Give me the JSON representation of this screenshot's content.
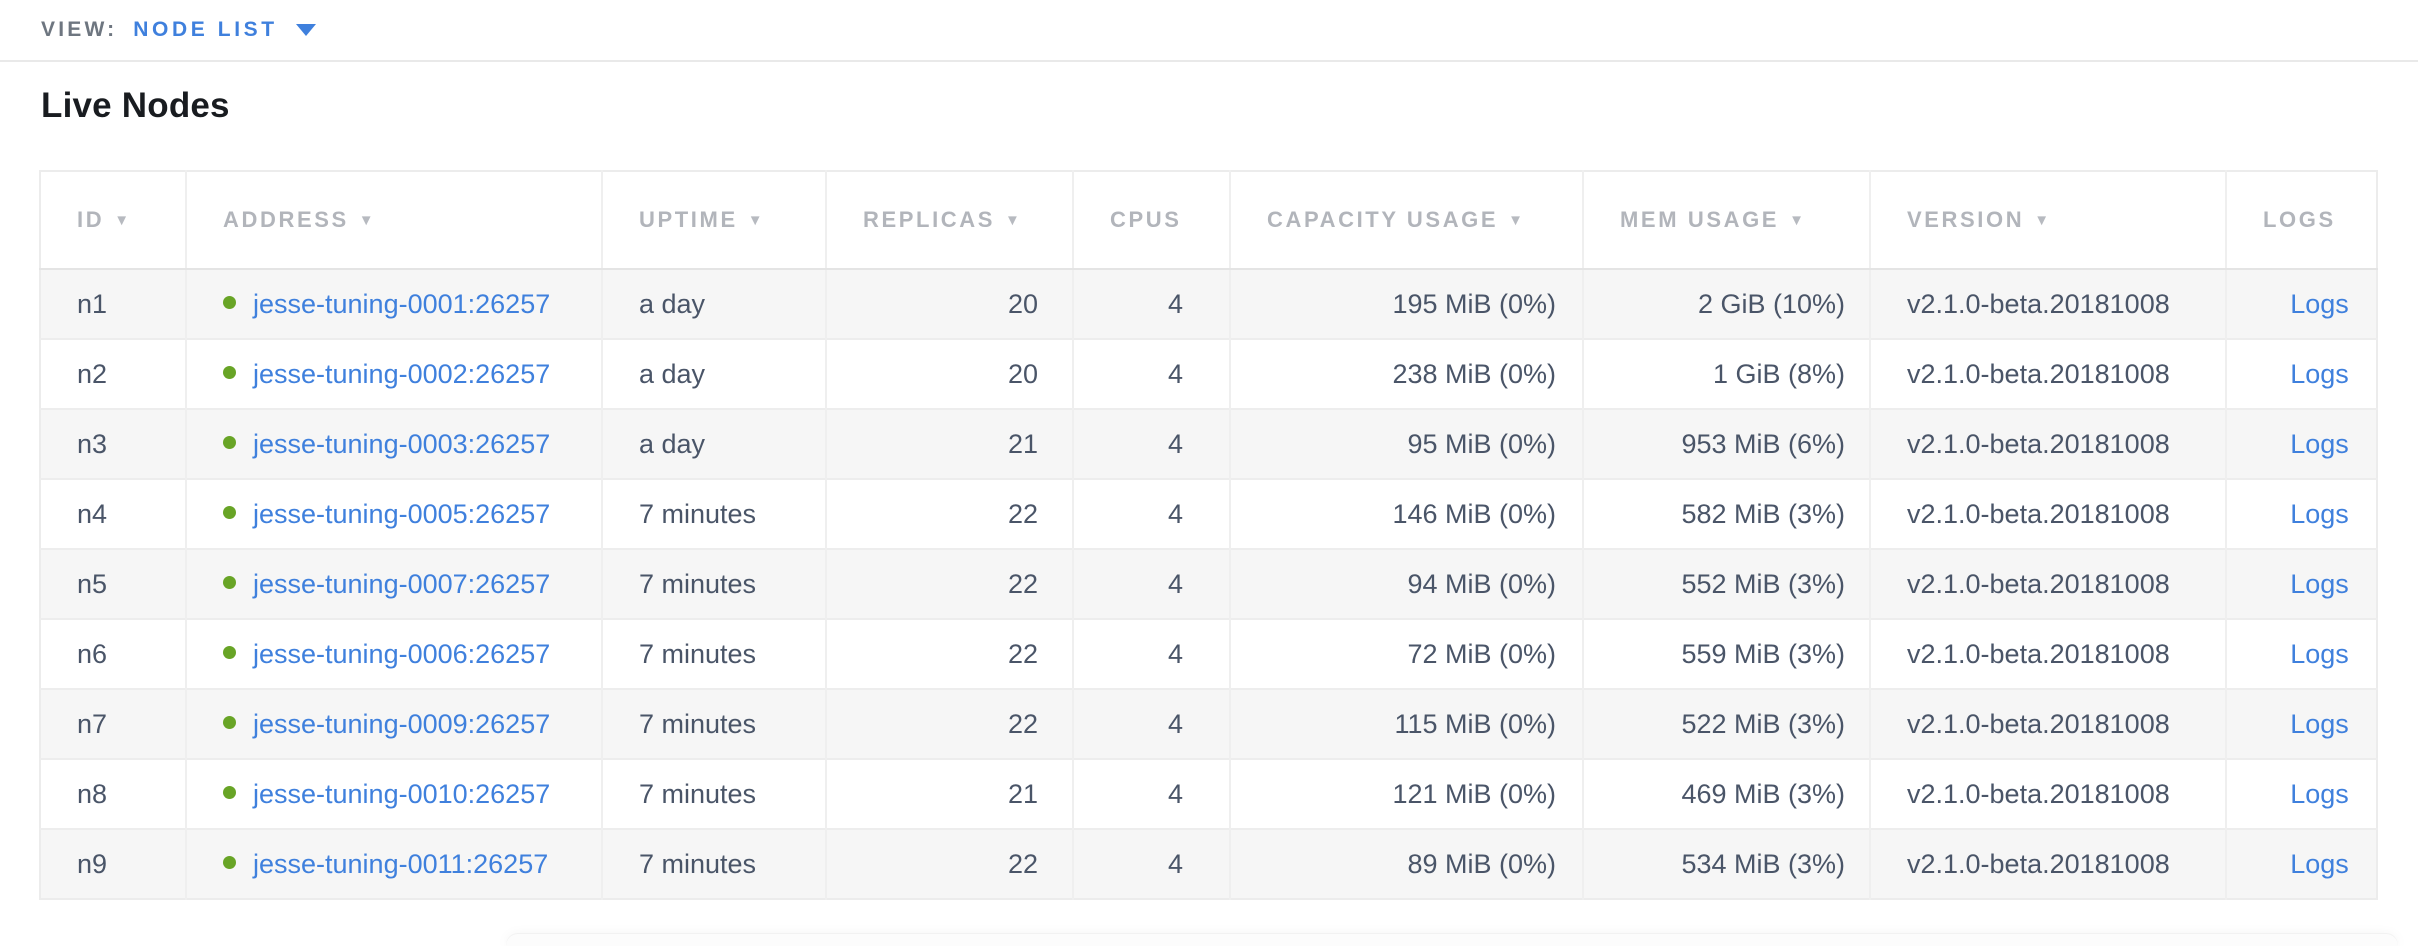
{
  "view_bar": {
    "label": "VIEW:",
    "selected": "NODE LIST"
  },
  "page": {
    "title": "Live Nodes"
  },
  "icons": {
    "sort_desc": "▼"
  },
  "colors": {
    "link_blue": "#3f80dd",
    "live_dot_green": "#68a426",
    "header_gray": "#b2b5bb",
    "cell_text": "#4a5568",
    "row_stripe": "#f6f6f6"
  },
  "table": {
    "columns": [
      {
        "key": "id",
        "label": "ID",
        "sorted": true
      },
      {
        "key": "address",
        "label": "ADDRESS",
        "sorted": true
      },
      {
        "key": "uptime",
        "label": "UPTIME",
        "sorted": true
      },
      {
        "key": "replicas",
        "label": "REPLICAS",
        "sorted": true
      },
      {
        "key": "cpus",
        "label": "CPUS",
        "sorted": false
      },
      {
        "key": "capacity",
        "label": "CAPACITY USAGE",
        "sorted": true
      },
      {
        "key": "mem",
        "label": "MEM USAGE",
        "sorted": true
      },
      {
        "key": "version",
        "label": "VERSION",
        "sorted": true
      },
      {
        "key": "logs",
        "label": "LOGS",
        "sorted": false
      }
    ],
    "rows": [
      {
        "id": "n1",
        "status": "live",
        "address": "jesse-tuning-0001:26257",
        "uptime": "a day",
        "replicas": "20",
        "cpus": "4",
        "capacity": "195 MiB (0%)",
        "mem": "2 GiB (10%)",
        "version": "v2.1.0-beta.20181008",
        "logs": "Logs"
      },
      {
        "id": "n2",
        "status": "live",
        "address": "jesse-tuning-0002:26257",
        "uptime": "a day",
        "replicas": "20",
        "cpus": "4",
        "capacity": "238 MiB (0%)",
        "mem": "1 GiB (8%)",
        "version": "v2.1.0-beta.20181008",
        "logs": "Logs"
      },
      {
        "id": "n3",
        "status": "live",
        "address": "jesse-tuning-0003:26257",
        "uptime": "a day",
        "replicas": "21",
        "cpus": "4",
        "capacity": "95 MiB (0%)",
        "mem": "953 MiB (6%)",
        "version": "v2.1.0-beta.20181008",
        "logs": "Logs"
      },
      {
        "id": "n4",
        "status": "live",
        "address": "jesse-tuning-0005:26257",
        "uptime": "7 minutes",
        "replicas": "22",
        "cpus": "4",
        "capacity": "146 MiB (0%)",
        "mem": "582 MiB (3%)",
        "version": "v2.1.0-beta.20181008",
        "logs": "Logs"
      },
      {
        "id": "n5",
        "status": "live",
        "address": "jesse-tuning-0007:26257",
        "uptime": "7 minutes",
        "replicas": "22",
        "cpus": "4",
        "capacity": "94 MiB (0%)",
        "mem": "552 MiB (3%)",
        "version": "v2.1.0-beta.20181008",
        "logs": "Logs"
      },
      {
        "id": "n6",
        "status": "live",
        "address": "jesse-tuning-0006:26257",
        "uptime": "7 minutes",
        "replicas": "22",
        "cpus": "4",
        "capacity": "72 MiB (0%)",
        "mem": "559 MiB (3%)",
        "version": "v2.1.0-beta.20181008",
        "logs": "Logs"
      },
      {
        "id": "n7",
        "status": "live",
        "address": "jesse-tuning-0009:26257",
        "uptime": "7 minutes",
        "replicas": "22",
        "cpus": "4",
        "capacity": "115 MiB (0%)",
        "mem": "522 MiB (3%)",
        "version": "v2.1.0-beta.20181008",
        "logs": "Logs"
      },
      {
        "id": "n8",
        "status": "live",
        "address": "jesse-tuning-0010:26257",
        "uptime": "7 minutes",
        "replicas": "21",
        "cpus": "4",
        "capacity": "121 MiB (0%)",
        "mem": "469 MiB (3%)",
        "version": "v2.1.0-beta.20181008",
        "logs": "Logs"
      },
      {
        "id": "n9",
        "status": "live",
        "address": "jesse-tuning-0011:26257",
        "uptime": "7 minutes",
        "replicas": "22",
        "cpus": "4",
        "capacity": "89 MiB (0%)",
        "mem": "534 MiB (3%)",
        "version": "v2.1.0-beta.20181008",
        "logs": "Logs"
      }
    ]
  }
}
